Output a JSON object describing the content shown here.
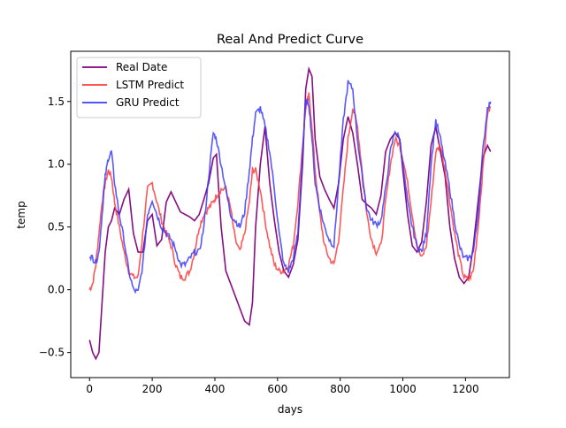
{
  "chart_data": {
    "type": "line",
    "title": "Real And Predict Curve",
    "xlabel": "days",
    "ylabel": "temp",
    "xlim": [
      -60,
      1340
    ],
    "ylim": [
      -0.7,
      1.9
    ],
    "xticks": [
      0,
      200,
      400,
      600,
      800,
      1000,
      1200
    ],
    "yticks": [
      -0.5,
      0.0,
      0.5,
      1.0,
      1.5
    ],
    "ytick_labels": [
      "−0.5",
      "0.0",
      "0.5",
      "1.0",
      "1.5"
    ],
    "legend_position": "top-left",
    "grid": false,
    "series": [
      {
        "name": "Real Date",
        "color": "#800080",
        "x": [
          0,
          10,
          20,
          30,
          40,
          50,
          60,
          70,
          80,
          95,
          110,
          125,
          140,
          155,
          170,
          185,
          200,
          215,
          230,
          245,
          260,
          275,
          290,
          305,
          320,
          335,
          350,
          365,
          380,
          395,
          405,
          420,
          435,
          450,
          465,
          480,
          495,
          510,
          520,
          530,
          545,
          560,
          575,
          590,
          605,
          620,
          635,
          650,
          665,
          680,
          690,
          700,
          710,
          720,
          735,
          750,
          765,
          780,
          795,
          810,
          825,
          840,
          855,
          870,
          885,
          900,
          915,
          930,
          945,
          960,
          975,
          990,
          1000,
          1015,
          1030,
          1045,
          1060,
          1075,
          1090,
          1105,
          1120,
          1135,
          1150,
          1165,
          1180,
          1195,
          1210,
          1225,
          1240,
          1255,
          1270,
          1280
        ],
        "y": [
          -0.4,
          -0.5,
          -0.55,
          -0.5,
          -0.1,
          0.3,
          0.5,
          0.55,
          0.65,
          0.6,
          0.72,
          0.8,
          0.45,
          0.3,
          0.3,
          0.55,
          0.6,
          0.35,
          0.4,
          0.7,
          0.78,
          0.7,
          0.62,
          0.6,
          0.58,
          0.55,
          0.6,
          0.72,
          0.85,
          1.05,
          1.08,
          0.5,
          0.15,
          0.05,
          -0.05,
          -0.15,
          -0.25,
          -0.28,
          -0.1,
          0.5,
          1.0,
          1.3,
          0.85,
          0.55,
          0.3,
          0.15,
          0.1,
          0.2,
          0.4,
          1.0,
          1.6,
          1.76,
          1.7,
          1.2,
          0.9,
          0.8,
          0.72,
          0.65,
          0.85,
          1.2,
          1.38,
          1.25,
          1.0,
          0.72,
          0.68,
          0.65,
          0.6,
          0.75,
          1.1,
          1.2,
          1.25,
          1.2,
          0.95,
          0.6,
          0.35,
          0.3,
          0.38,
          0.7,
          1.15,
          1.3,
          1.1,
          0.9,
          0.5,
          0.25,
          0.1,
          0.05,
          0.1,
          0.35,
          0.7,
          1.05,
          1.15,
          1.1
        ]
      },
      {
        "name": "LSTM Predict",
        "color": "#ff3b3b",
        "x": [
          0,
          10,
          20,
          30,
          40,
          50,
          60,
          70,
          80,
          95,
          110,
          125,
          140,
          155,
          170,
          185,
          200,
          215,
          230,
          245,
          260,
          275,
          290,
          305,
          320,
          335,
          350,
          365,
          380,
          395,
          405,
          420,
          435,
          450,
          465,
          480,
          495,
          510,
          520,
          530,
          545,
          560,
          575,
          590,
          605,
          620,
          635,
          650,
          665,
          680,
          690,
          700,
          710,
          720,
          735,
          750,
          765,
          780,
          795,
          810,
          825,
          840,
          855,
          870,
          885,
          900,
          915,
          930,
          945,
          960,
          975,
          990,
          1000,
          1015,
          1030,
          1045,
          1060,
          1075,
          1090,
          1105,
          1120,
          1135,
          1150,
          1165,
          1180,
          1195,
          1210,
          1225,
          1240,
          1255,
          1270,
          1280
        ],
        "y": [
          0.0,
          0.05,
          0.2,
          0.45,
          0.7,
          0.85,
          0.95,
          0.9,
          0.7,
          0.5,
          0.3,
          0.15,
          0.1,
          0.1,
          0.45,
          0.8,
          0.85,
          0.7,
          0.55,
          0.45,
          0.35,
          0.2,
          0.1,
          0.1,
          0.15,
          0.3,
          0.5,
          0.6,
          0.65,
          0.7,
          0.75,
          0.8,
          0.8,
          0.65,
          0.4,
          0.3,
          0.45,
          0.7,
          0.95,
          0.95,
          0.8,
          0.55,
          0.35,
          0.2,
          0.15,
          0.15,
          0.2,
          0.35,
          0.7,
          1.15,
          1.45,
          1.55,
          1.3,
          0.95,
          0.6,
          0.35,
          0.25,
          0.2,
          0.4,
          0.8,
          1.2,
          1.45,
          1.3,
          0.95,
          0.6,
          0.4,
          0.3,
          0.35,
          0.7,
          1.0,
          1.2,
          1.15,
          1.05,
          0.85,
          0.6,
          0.35,
          0.25,
          0.35,
          0.7,
          1.1,
          1.15,
          0.95,
          0.7,
          0.45,
          0.25,
          0.1,
          0.08,
          0.15,
          0.5,
          0.95,
          1.4,
          1.45
        ]
      },
      {
        "name": "GRU Predict",
        "color": "#3b3bff",
        "x": [
          0,
          10,
          20,
          30,
          40,
          50,
          60,
          70,
          80,
          95,
          110,
          125,
          140,
          155,
          170,
          185,
          200,
          215,
          230,
          245,
          260,
          275,
          290,
          305,
          320,
          335,
          350,
          365,
          380,
          395,
          405,
          420,
          435,
          450,
          465,
          480,
          495,
          510,
          520,
          530,
          545,
          560,
          575,
          590,
          605,
          620,
          635,
          650,
          665,
          680,
          690,
          700,
          710,
          720,
          735,
          750,
          765,
          780,
          795,
          810,
          825,
          840,
          855,
          870,
          885,
          900,
          915,
          930,
          945,
          960,
          975,
          990,
          1000,
          1015,
          1030,
          1045,
          1060,
          1075,
          1090,
          1105,
          1120,
          1135,
          1150,
          1165,
          1180,
          1195,
          1210,
          1225,
          1240,
          1255,
          1270,
          1280
        ],
        "y": [
          0.28,
          0.25,
          0.22,
          0.3,
          0.6,
          0.9,
          1.05,
          1.1,
          0.85,
          0.6,
          0.4,
          0.15,
          0.0,
          -0.02,
          0.2,
          0.6,
          0.72,
          0.6,
          0.5,
          0.45,
          0.4,
          0.32,
          0.2,
          0.2,
          0.25,
          0.3,
          0.3,
          0.5,
          0.9,
          1.25,
          1.2,
          1.0,
          0.8,
          0.6,
          0.55,
          0.5,
          0.62,
          0.95,
          1.2,
          1.4,
          1.45,
          1.3,
          1.1,
          0.8,
          0.45,
          0.2,
          0.15,
          0.25,
          0.45,
          1.1,
          1.5,
          1.48,
          1.2,
          0.85,
          0.65,
          0.5,
          0.4,
          0.35,
          0.85,
          1.35,
          1.65,
          1.6,
          1.2,
          0.9,
          0.65,
          0.55,
          0.52,
          0.55,
          0.8,
          1.1,
          1.27,
          1.2,
          1.0,
          0.7,
          0.5,
          0.35,
          0.3,
          0.45,
          1.0,
          1.35,
          1.2,
          1.0,
          0.8,
          0.55,
          0.35,
          0.25,
          0.25,
          0.3,
          0.6,
          1.1,
          1.45,
          1.5
        ]
      }
    ]
  }
}
